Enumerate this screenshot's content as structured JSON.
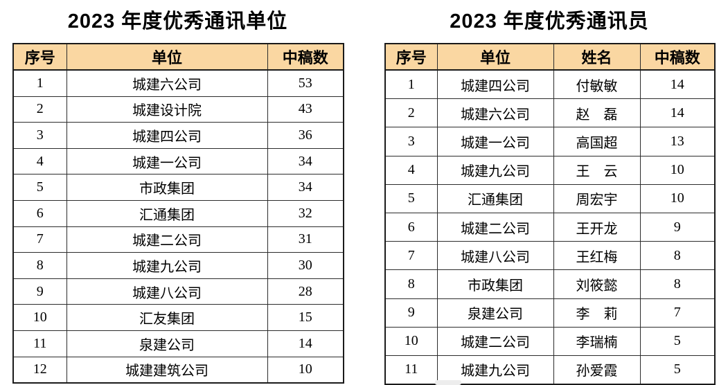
{
  "colors": {
    "header_bg": "#FAD7A2",
    "border": "#1a1a1a",
    "text": "#000000"
  },
  "left_table": {
    "title": "2023 年度优秀通讯单位",
    "headers": [
      "序号",
      "单位",
      "中稿数"
    ],
    "rows": [
      [
        "1",
        "城建六公司",
        "53"
      ],
      [
        "2",
        "城建设计院",
        "43"
      ],
      [
        "3",
        "城建四公司",
        "36"
      ],
      [
        "4",
        "城建一公司",
        "34"
      ],
      [
        "5",
        "市政集团",
        "34"
      ],
      [
        "6",
        "汇通集团",
        "32"
      ],
      [
        "7",
        "城建二公司",
        "31"
      ],
      [
        "8",
        "城建九公司",
        "30"
      ],
      [
        "9",
        "城建八公司",
        "28"
      ],
      [
        "10",
        "汇友集团",
        "15"
      ],
      [
        "11",
        "泉建公司",
        "14"
      ],
      [
        "12",
        "城建建筑公司",
        "10"
      ]
    ]
  },
  "right_table": {
    "title": "2023 年度优秀通讯员",
    "headers": [
      "序号",
      "单位",
      "姓名",
      "中稿数"
    ],
    "rows": [
      [
        "1",
        "城建四公司",
        "付敏敏",
        "14"
      ],
      [
        "2",
        "城建六公司",
        "赵　磊",
        "14"
      ],
      [
        "3",
        "城建一公司",
        "高国超",
        "13"
      ],
      [
        "4",
        "城建九公司",
        "王　云",
        "10"
      ],
      [
        "5",
        "汇通集团",
        "周宏宇",
        "10"
      ],
      [
        "6",
        "城建二公司",
        "王开龙",
        "9"
      ],
      [
        "7",
        "城建八公司",
        "王红梅",
        "8"
      ],
      [
        "8",
        "市政集团",
        "刘筱懿",
        "8"
      ],
      [
        "9",
        "泉建公司",
        "李　莉",
        "7"
      ],
      [
        "10",
        "城建二公司",
        "李瑞楠",
        "5"
      ],
      [
        "11",
        "城建九公司",
        "孙爱霞",
        "5"
      ]
    ]
  }
}
